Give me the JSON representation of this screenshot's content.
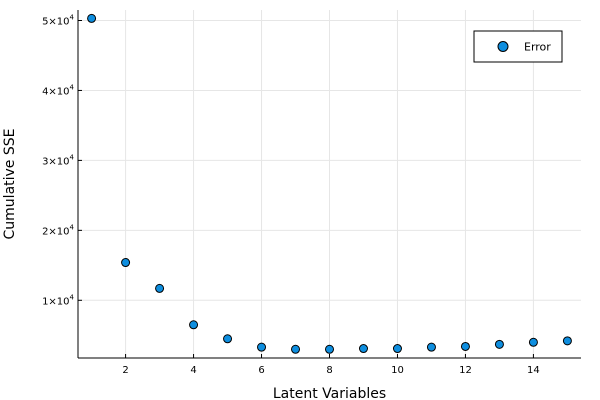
{
  "chart_data": {
    "type": "scatter",
    "xlabel": "Latent Variables",
    "ylabel": "Cumulative SSE",
    "xlim": [
      0.6,
      15.4
    ],
    "ylim": [
      1750,
      51500
    ],
    "x_ticks": [
      2,
      4,
      6,
      8,
      10,
      12,
      14
    ],
    "y_ticks": [
      {
        "value": 10000,
        "mantissa": "1",
        "base": "×10",
        "exp": "4"
      },
      {
        "value": 20000,
        "mantissa": "2",
        "base": "×10",
        "exp": "4"
      },
      {
        "value": 30000,
        "mantissa": "3",
        "base": "×10",
        "exp": "4"
      },
      {
        "value": 40000,
        "mantissa": "4",
        "base": "×10",
        "exp": "4"
      },
      {
        "value": 50000,
        "mantissa": "5",
        "base": "×10",
        "exp": "4"
      }
    ],
    "grid": true,
    "legend_position": "top-right",
    "series": [
      {
        "name": "Error",
        "color": "#0e8edf",
        "x": [
          1,
          2,
          3,
          4,
          5,
          6,
          7,
          8,
          9,
          10,
          11,
          12,
          13,
          14,
          15
        ],
        "y": [
          50300,
          15400,
          11700,
          6500,
          4500,
          3300,
          3000,
          3000,
          3100,
          3100,
          3300,
          3400,
          3700,
          4000,
          4200
        ]
      }
    ]
  }
}
